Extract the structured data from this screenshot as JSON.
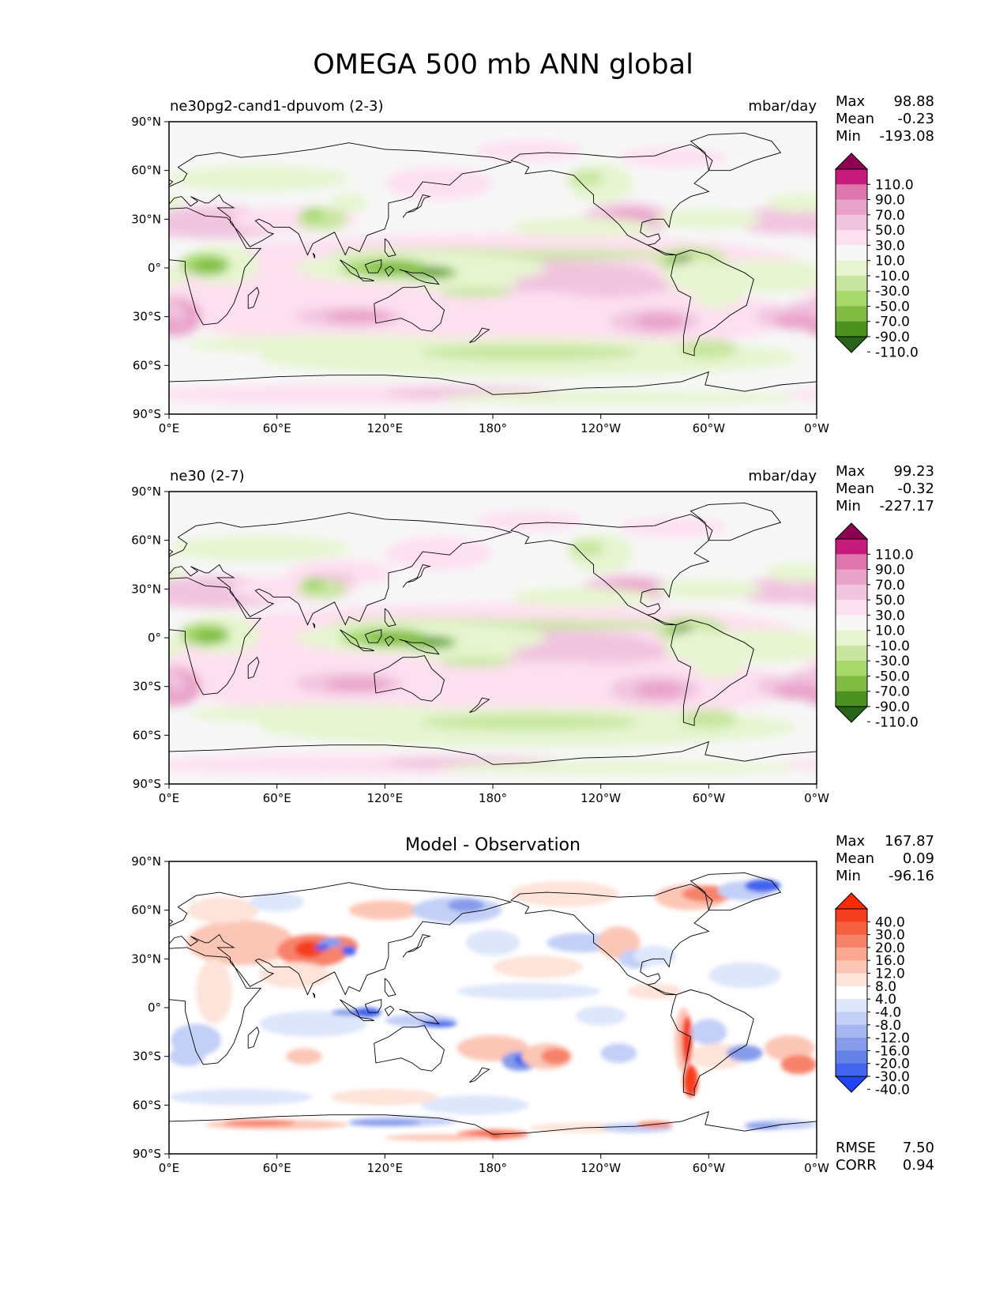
{
  "figure_title": "OMEGA 500 mb ANN global",
  "colors": {
    "land_outline": "#000000",
    "frame": "#000000",
    "ocean_bg": "#f7f7f7"
  },
  "chart_data": [
    {
      "type": "heatmap",
      "panel": "test",
      "left_title": "ne30pg2-cand1-dpuvom (2-3)",
      "units": "mbar/day",
      "stats": {
        "labels": [
          "Max",
          "Mean",
          "Min"
        ],
        "values": [
          "98.88",
          "-0.23",
          "-193.08"
        ]
      },
      "xticks": [
        "0°E",
        "60°E",
        "120°E",
        "180°",
        "120°W",
        "60°W",
        "0°W"
      ],
      "yticks": [
        "90°N",
        "60°N",
        "30°N",
        "0°",
        "30°S",
        "60°S",
        "90°S"
      ],
      "xlim": [
        0,
        360
      ],
      "ylim": [
        -90,
        90
      ],
      "colorbar": {
        "labels": [
          "110.0",
          "90.0",
          "70.0",
          "50.0",
          "30.0",
          "10.0",
          "-10.0",
          "-30.0",
          "-50.0",
          "-70.0",
          "-90.0",
          "-110.0"
        ],
        "colors": [
          "#8e0152",
          "#c51b7d",
          "#de77ae",
          "#e9a3c9",
          "#f1c4e0",
          "#fde0ef",
          "#f7f7f7",
          "#e6f5d0",
          "#c8e6a0",
          "#a6d96a",
          "#7fbc41",
          "#4d9221",
          "#276419"
        ],
        "extend": "both"
      },
      "rmse": null,
      "corr": null
    },
    {
      "type": "heatmap",
      "panel": "reference",
      "left_title": "ne30 (2-7)",
      "units": "mbar/day",
      "stats": {
        "labels": [
          "Max",
          "Mean",
          "Min"
        ],
        "values": [
          "99.23",
          "-0.32",
          "-227.17"
        ]
      },
      "xticks": [
        "0°E",
        "60°E",
        "120°E",
        "180°",
        "120°W",
        "60°W",
        "0°W"
      ],
      "yticks": [
        "90°N",
        "60°N",
        "30°N",
        "0°",
        "30°S",
        "60°S",
        "90°S"
      ],
      "xlim": [
        0,
        360
      ],
      "ylim": [
        -90,
        90
      ],
      "colorbar": {
        "labels": [
          "110.0",
          "90.0",
          "70.0",
          "50.0",
          "30.0",
          "10.0",
          "-10.0",
          "-30.0",
          "-50.0",
          "-70.0",
          "-90.0",
          "-110.0"
        ],
        "colors": [
          "#8e0152",
          "#c51b7d",
          "#de77ae",
          "#e9a3c9",
          "#f1c4e0",
          "#fde0ef",
          "#f7f7f7",
          "#e6f5d0",
          "#c8e6a0",
          "#a6d96a",
          "#7fbc41",
          "#4d9221",
          "#276419"
        ],
        "extend": "both"
      },
      "rmse": null,
      "corr": null
    },
    {
      "type": "heatmap",
      "panel": "difference",
      "center_title": "Model - Observation",
      "stats": {
        "labels": [
          "Max",
          "Mean",
          "Min"
        ],
        "values": [
          "167.87",
          "0.09",
          "-96.16"
        ]
      },
      "xticks": [
        "0°E",
        "60°E",
        "120°E",
        "180°",
        "120°W",
        "60°W",
        "0°W"
      ],
      "yticks": [
        "90°N",
        "60°N",
        "30°N",
        "0°",
        "30°S",
        "60°S",
        "90°S"
      ],
      "xlim": [
        0,
        360
      ],
      "ylim": [
        -90,
        90
      ],
      "colorbar": {
        "labels": [
          "40.0",
          "30.0",
          "20.0",
          "16.0",
          "12.0",
          "8.0",
          "4.0",
          "-4.0",
          "-8.0",
          "-12.0",
          "-16.0",
          "-20.0",
          "-30.0",
          "-40.0"
        ],
        "colors": [
          "#ff2a00",
          "#f53d1f",
          "#f5603f",
          "#f7826a",
          "#faa690",
          "#fcc6b6",
          "#fde3d9",
          "#ffffff",
          "#dde6fb",
          "#c2cff6",
          "#a5b6f0",
          "#869bea",
          "#6382e6",
          "#4264ee",
          "#1f45f5"
        ],
        "extend": "both"
      },
      "rmse": {
        "label": "RMSE",
        "value": "7.50"
      },
      "corr": {
        "label": "CORR",
        "value": "0.94"
      }
    }
  ]
}
